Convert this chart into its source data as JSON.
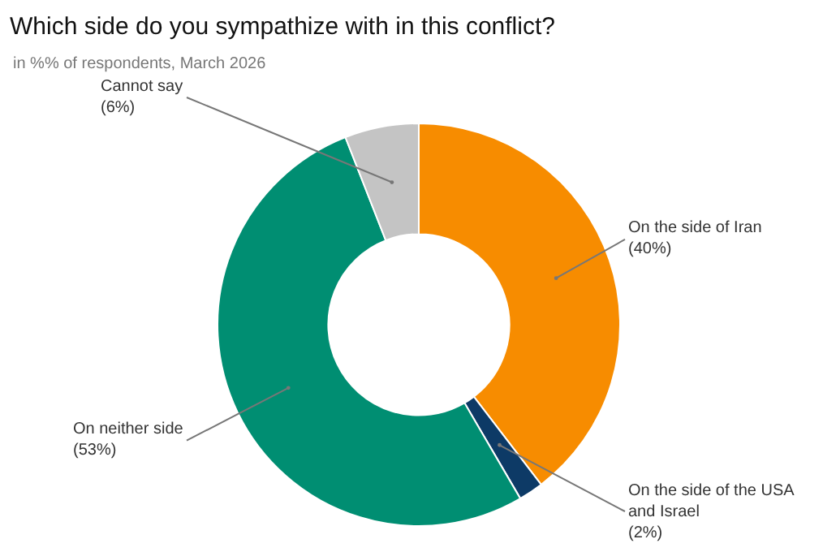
{
  "chart_data": {
    "type": "donut",
    "title": "Which side do you sympathize with in this conflict?",
    "subtitle": "in %% of respondents, March 2026",
    "categories": [
      "On the side of Iran",
      "On the side of the USA and Israel",
      "On neither side",
      "Cannot say"
    ],
    "values": [
      40,
      2,
      53,
      6
    ],
    "value_labels": [
      "(40%)",
      "(2%)",
      "(53%)",
      "(6%)"
    ],
    "colors": [
      "#f78c00",
      "#0d3a66",
      "#008e72",
      "#c4c4c4"
    ],
    "legend": false
  }
}
